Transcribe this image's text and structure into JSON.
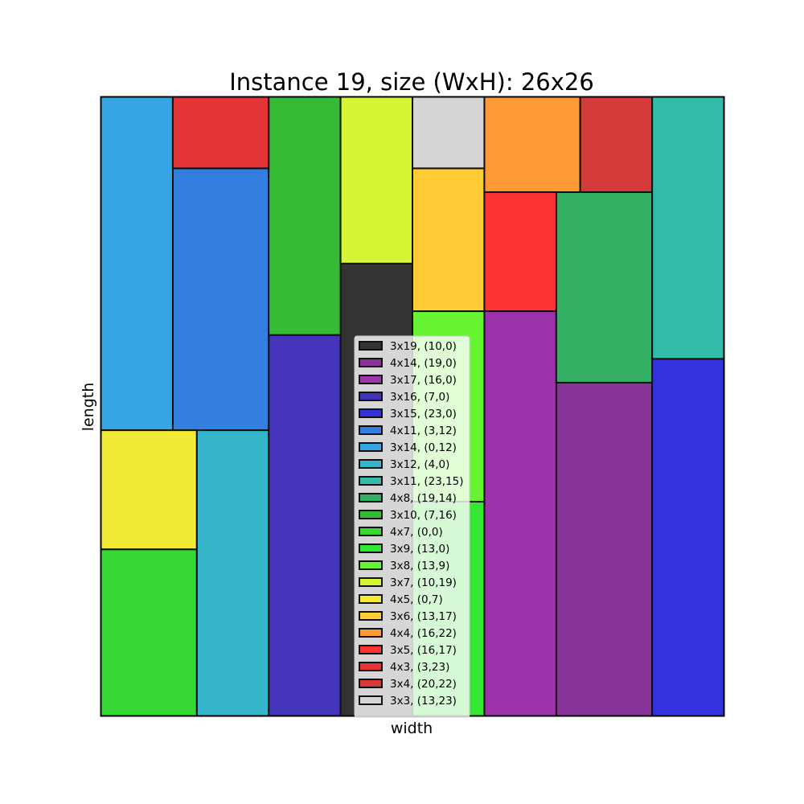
{
  "chart_data": {
    "type": "rectangle-packing",
    "title": "Instance 19, size (WxH): 26x26",
    "xlabel": "width",
    "ylabel": "length",
    "container": {
      "width": 26,
      "height": 26
    },
    "xlim": [
      0,
      26
    ],
    "ylim": [
      0,
      26
    ],
    "grid": false,
    "legend_position": "center",
    "rectangles": [
      {
        "label": "3x19, (10,0)",
        "w": 3,
        "h": 19,
        "x": 10,
        "y": 0,
        "color": "#333333"
      },
      {
        "label": "4x14, (19,0)",
        "w": 4,
        "h": 14,
        "x": 19,
        "y": 0,
        "color": "#883399"
      },
      {
        "label": "3x17, (16,0)",
        "w": 3,
        "h": 17,
        "x": 16,
        "y": 0,
        "color": "#9D33AA"
      },
      {
        "label": "3x16, (7,0)",
        "w": 3,
        "h": 16,
        "x": 7,
        "y": 0,
        "color": "#4433BB"
      },
      {
        "label": "3x15, (23,0)",
        "w": 3,
        "h": 15,
        "x": 23,
        "y": 0,
        "color": "#3333DD"
      },
      {
        "label": "4x11, (3,12)",
        "w": 4,
        "h": 11,
        "x": 3,
        "y": 12,
        "color": "#337FE0"
      },
      {
        "label": "3x14, (0,12)",
        "w": 3,
        "h": 14,
        "x": 0,
        "y": 12,
        "color": "#35A5E3"
      },
      {
        "label": "3x12, (4,0)",
        "w": 3,
        "h": 12,
        "x": 4,
        "y": 0,
        "color": "#35B5CA"
      },
      {
        "label": "3x11, (23,15)",
        "w": 3,
        "h": 11,
        "x": 23,
        "y": 15,
        "color": "#33BBAA"
      },
      {
        "label": "4x8, (19,14)",
        "w": 4,
        "h": 8,
        "x": 19,
        "y": 14,
        "color": "#33B063"
      },
      {
        "label": "3x10, (7,16)",
        "w": 3,
        "h": 10,
        "x": 7,
        "y": 16,
        "color": "#35BB35"
      },
      {
        "label": "4x7, (0,0)",
        "w": 4,
        "h": 7,
        "x": 0,
        "y": 0,
        "color": "#35D835"
      },
      {
        "label": "3x9, (13,0)",
        "w": 3,
        "h": 9,
        "x": 13,
        "y": 0,
        "color": "#33E733"
      },
      {
        "label": "3x8, (13,9)",
        "w": 3,
        "h": 8,
        "x": 13,
        "y": 9,
        "color": "#66F433"
      },
      {
        "label": "3x7, (10,19)",
        "w": 3,
        "h": 7,
        "x": 10,
        "y": 19,
        "color": "#D5F733"
      },
      {
        "label": "4x5, (0,7)",
        "w": 4,
        "h": 5,
        "x": 0,
        "y": 7,
        "color": "#F3EA35"
      },
      {
        "label": "3x6, (13,17)",
        "w": 3,
        "h": 6,
        "x": 13,
        "y": 17,
        "color": "#FFCC35"
      },
      {
        "label": "4x4, (16,22)",
        "w": 4,
        "h": 4,
        "x": 16,
        "y": 22,
        "color": "#FF9935"
      },
      {
        "label": "3x5, (16,17)",
        "w": 3,
        "h": 5,
        "x": 16,
        "y": 17,
        "color": "#FF3333"
      },
      {
        "label": "4x3, (3,23)",
        "w": 4,
        "h": 3,
        "x": 3,
        "y": 23,
        "color": "#E33535"
      },
      {
        "label": "3x4, (20,22)",
        "w": 3,
        "h": 4,
        "x": 20,
        "y": 22,
        "color": "#D43A3A"
      },
      {
        "label": "3x3, (13,23)",
        "w": 3,
        "h": 3,
        "x": 13,
        "y": 23,
        "color": "#D5D5D5"
      }
    ]
  }
}
